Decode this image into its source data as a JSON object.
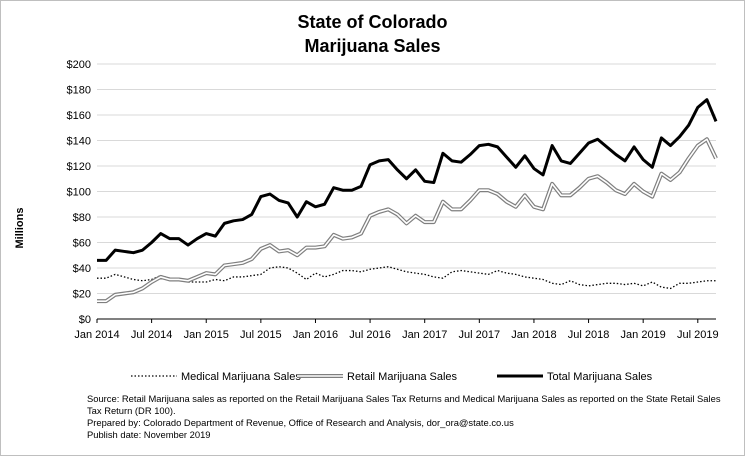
{
  "chart_data": {
    "type": "line",
    "title_lines": [
      "State of Colorado",
      "Marijuana Sales"
    ],
    "ylabel": "Millions",
    "xlabel": "",
    "ylim": [
      0,
      200
    ],
    "y_ticks": [
      "$0",
      "$20",
      "$40",
      "$60",
      "$80",
      "$100",
      "$120",
      "$140",
      "$160",
      "$180",
      "$200"
    ],
    "x_ticks": [
      {
        "index": 0,
        "label": "Jan 2014"
      },
      {
        "index": 6,
        "label": "Jul 2014"
      },
      {
        "index": 12,
        "label": "Jan 2015"
      },
      {
        "index": 18,
        "label": "Jul 2015"
      },
      {
        "index": 24,
        "label": "Jan 2016"
      },
      {
        "index": 30,
        "label": "Jul 2016"
      },
      {
        "index": 36,
        "label": "Jan 2017"
      },
      {
        "index": 42,
        "label": "Jul 2017"
      },
      {
        "index": 48,
        "label": "Jan 2018"
      },
      {
        "index": 54,
        "label": "Jul 2018"
      },
      {
        "index": 60,
        "label": "Jan 2019"
      },
      {
        "index": 66,
        "label": "Jul 2019"
      }
    ],
    "months": [
      "Jan 2014",
      "Feb 2014",
      "Mar 2014",
      "Apr 2014",
      "May 2014",
      "Jun 2014",
      "Jul 2014",
      "Aug 2014",
      "Sep 2014",
      "Oct 2014",
      "Nov 2014",
      "Dec 2014",
      "Jan 2015",
      "Feb 2015",
      "Mar 2015",
      "Apr 2015",
      "May 2015",
      "Jun 2015",
      "Jul 2015",
      "Aug 2015",
      "Sep 2015",
      "Oct 2015",
      "Nov 2015",
      "Dec 2015",
      "Jan 2016",
      "Feb 2016",
      "Mar 2016",
      "Apr 2016",
      "May 2016",
      "Jun 2016",
      "Jul 2016",
      "Aug 2016",
      "Sep 2016",
      "Oct 2016",
      "Nov 2016",
      "Dec 2016",
      "Jan 2017",
      "Feb 2017",
      "Mar 2017",
      "Apr 2017",
      "May 2017",
      "Jun 2017",
      "Jul 2017",
      "Aug 2017",
      "Sep 2017",
      "Oct 2017",
      "Nov 2017",
      "Dec 2017",
      "Jan 2018",
      "Feb 2018",
      "Mar 2018",
      "Apr 2018",
      "May 2018",
      "Jun 2018",
      "Jul 2018",
      "Aug 2018",
      "Sep 2018",
      "Oct 2018",
      "Nov 2018",
      "Dec 2018",
      "Jan 2019",
      "Feb 2019",
      "Mar 2019",
      "Apr 2019",
      "May 2019",
      "Jun 2019",
      "Jul 2019",
      "Aug 2019",
      "Sep 2019"
    ],
    "series": [
      {
        "name": "Medical Marijuana Sales",
        "style": "dotted",
        "color": "#000000",
        "values": [
          32,
          32,
          35,
          33,
          31,
          30,
          31,
          34,
          32,
          31,
          29,
          29,
          29,
          31,
          30,
          33,
          33,
          34,
          35,
          40,
          41,
          40,
          36,
          31,
          36,
          33,
          35,
          38,
          38,
          37,
          39,
          40,
          41,
          39,
          37,
          36,
          35,
          33,
          32,
          37,
          38,
          37,
          36,
          35,
          38,
          36,
          35,
          33,
          32,
          31,
          28,
          27,
          30,
          27,
          26,
          27,
          28,
          28,
          27,
          28,
          26,
          29,
          25,
          24,
          28,
          28,
          29,
          30,
          30
        ]
      },
      {
        "name": "Retail Marijuana Sales",
        "style": "double",
        "color": "#7f7f7f",
        "values": [
          14,
          14,
          19,
          20,
          21,
          24,
          29,
          33,
          31,
          31,
          30,
          33,
          36,
          35,
          42,
          43,
          44,
          47,
          55,
          58,
          53,
          54,
          50,
          56,
          56,
          57,
          66,
          63,
          64,
          67,
          81,
          84,
          86,
          82,
          75,
          81,
          76,
          76,
          92,
          86,
          86,
          93,
          101,
          101,
          98,
          92,
          88,
          97,
          88,
          86,
          106,
          97,
          97,
          103,
          110,
          112,
          107,
          101,
          98,
          106,
          100,
          96,
          114,
          109,
          115,
          126,
          136,
          141,
          126
        ]
      },
      {
        "name": "Total Marijuana Sales",
        "style": "thick",
        "color": "#000000",
        "values": [
          46,
          46,
          54,
          53,
          52,
          54,
          60,
          67,
          63,
          63,
          58,
          63,
          67,
          65,
          75,
          77,
          78,
          82,
          96,
          98,
          93,
          91,
          80,
          92,
          88,
          90,
          103,
          101,
          101,
          104,
          121,
          124,
          125,
          117,
          110,
          117,
          108,
          107,
          130,
          124,
          123,
          129,
          136,
          137,
          135,
          127,
          119,
          128,
          118,
          113,
          136,
          124,
          122,
          130,
          138,
          141,
          135,
          129,
          124,
          135,
          125,
          119,
          142,
          136,
          143,
          152,
          166,
          172,
          155
        ]
      }
    ],
    "legend_position": "bottom"
  },
  "source_lines": [
    "Source: Retail Marijuana sales as reported on the Retail Marijuana Sales Tax Returns and Medical Marijuana Sales as reported on the State Retail Sales Tax Return (DR 100).",
    "Prepared by: Colorado Department of Revenue, Office of Research and Analysis, dor_ora@state.co.us",
    "Publish date: November 2019"
  ]
}
